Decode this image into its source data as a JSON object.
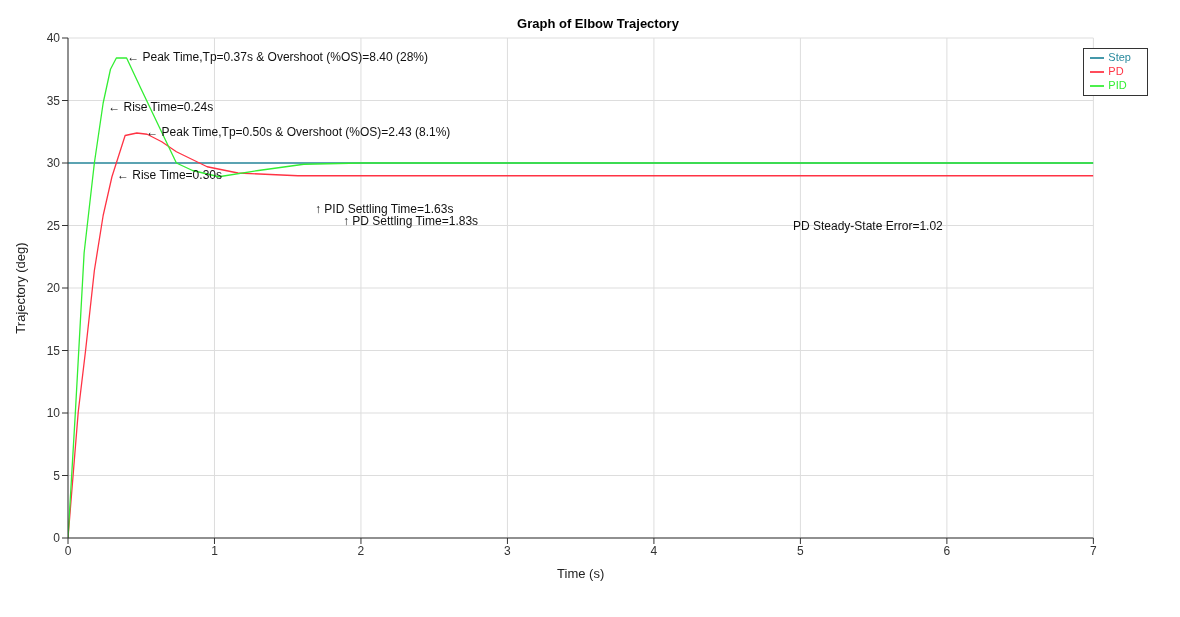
{
  "chart_data": {
    "type": "line",
    "title": "Graph of Elbow Trajectory",
    "xlabel": "Time (s)",
    "ylabel": "Trajectory (deg)",
    "xlim": [
      0,
      7
    ],
    "xticks": [
      0,
      1,
      2,
      3,
      4,
      5,
      6,
      7
    ],
    "ylim": [
      0,
      40
    ],
    "yticks": [
      0,
      5,
      10,
      15,
      20,
      25,
      30,
      35,
      40
    ],
    "grid": true,
    "legend": "top right",
    "marker": "none",
    "line_style": "solid",
    "series": [
      {
        "name": "Step",
        "color": "#2a8a9e",
        "x": [
          0,
          7
        ],
        "values": [
          30,
          30
        ]
      },
      {
        "name": "PD",
        "color": "#ff3344",
        "x": [
          0,
          0.07,
          0.12,
          0.18,
          0.24,
          0.3,
          0.39,
          0.47,
          0.54,
          0.64,
          0.74,
          0.95,
          1.16,
          1.57,
          7
        ],
        "values": [
          0,
          10.1,
          15,
          21.4,
          25.8,
          28.9,
          32.2,
          32.4,
          32.3,
          31.7,
          30.9,
          29.7,
          29.2,
          28.98,
          28.98
        ]
      },
      {
        "name": "PID",
        "color": "#33ee33",
        "x": [
          0,
          0.05,
          0.11,
          0.18,
          0.24,
          0.29,
          0.33,
          0.4,
          0.5,
          0.74,
          0.85,
          1.03,
          1.3,
          1.61,
          2,
          7
        ],
        "values": [
          0,
          10,
          22.8,
          30,
          34.8,
          37.5,
          38.4,
          38.4,
          35.9,
          30,
          29.4,
          28.9,
          29.4,
          29.9,
          30,
          30
        ]
      }
    ],
    "annotations": [
      {
        "text": "← Peak Time,Tp=0.37s & Overshoot (%OS)=8.40 (28%)",
        "x": 0.37,
        "y": 38.4
      },
      {
        "text": "← Rise Time=0.24s",
        "x": 0.24,
        "y": 34.4
      },
      {
        "text": "← Peak Time,Tp=0.50s & Overshoot (%OS)=2.43 (8.1%)",
        "x": 0.5,
        "y": 32.4
      },
      {
        "text": "← Rise Time=0.30s",
        "x": 0.3,
        "y": 29
      },
      "↑ PID Settling Time=1.63s",
      "↑ PD Settling Time=1.83s",
      "PD Steady-State Error=1.02"
    ]
  }
}
